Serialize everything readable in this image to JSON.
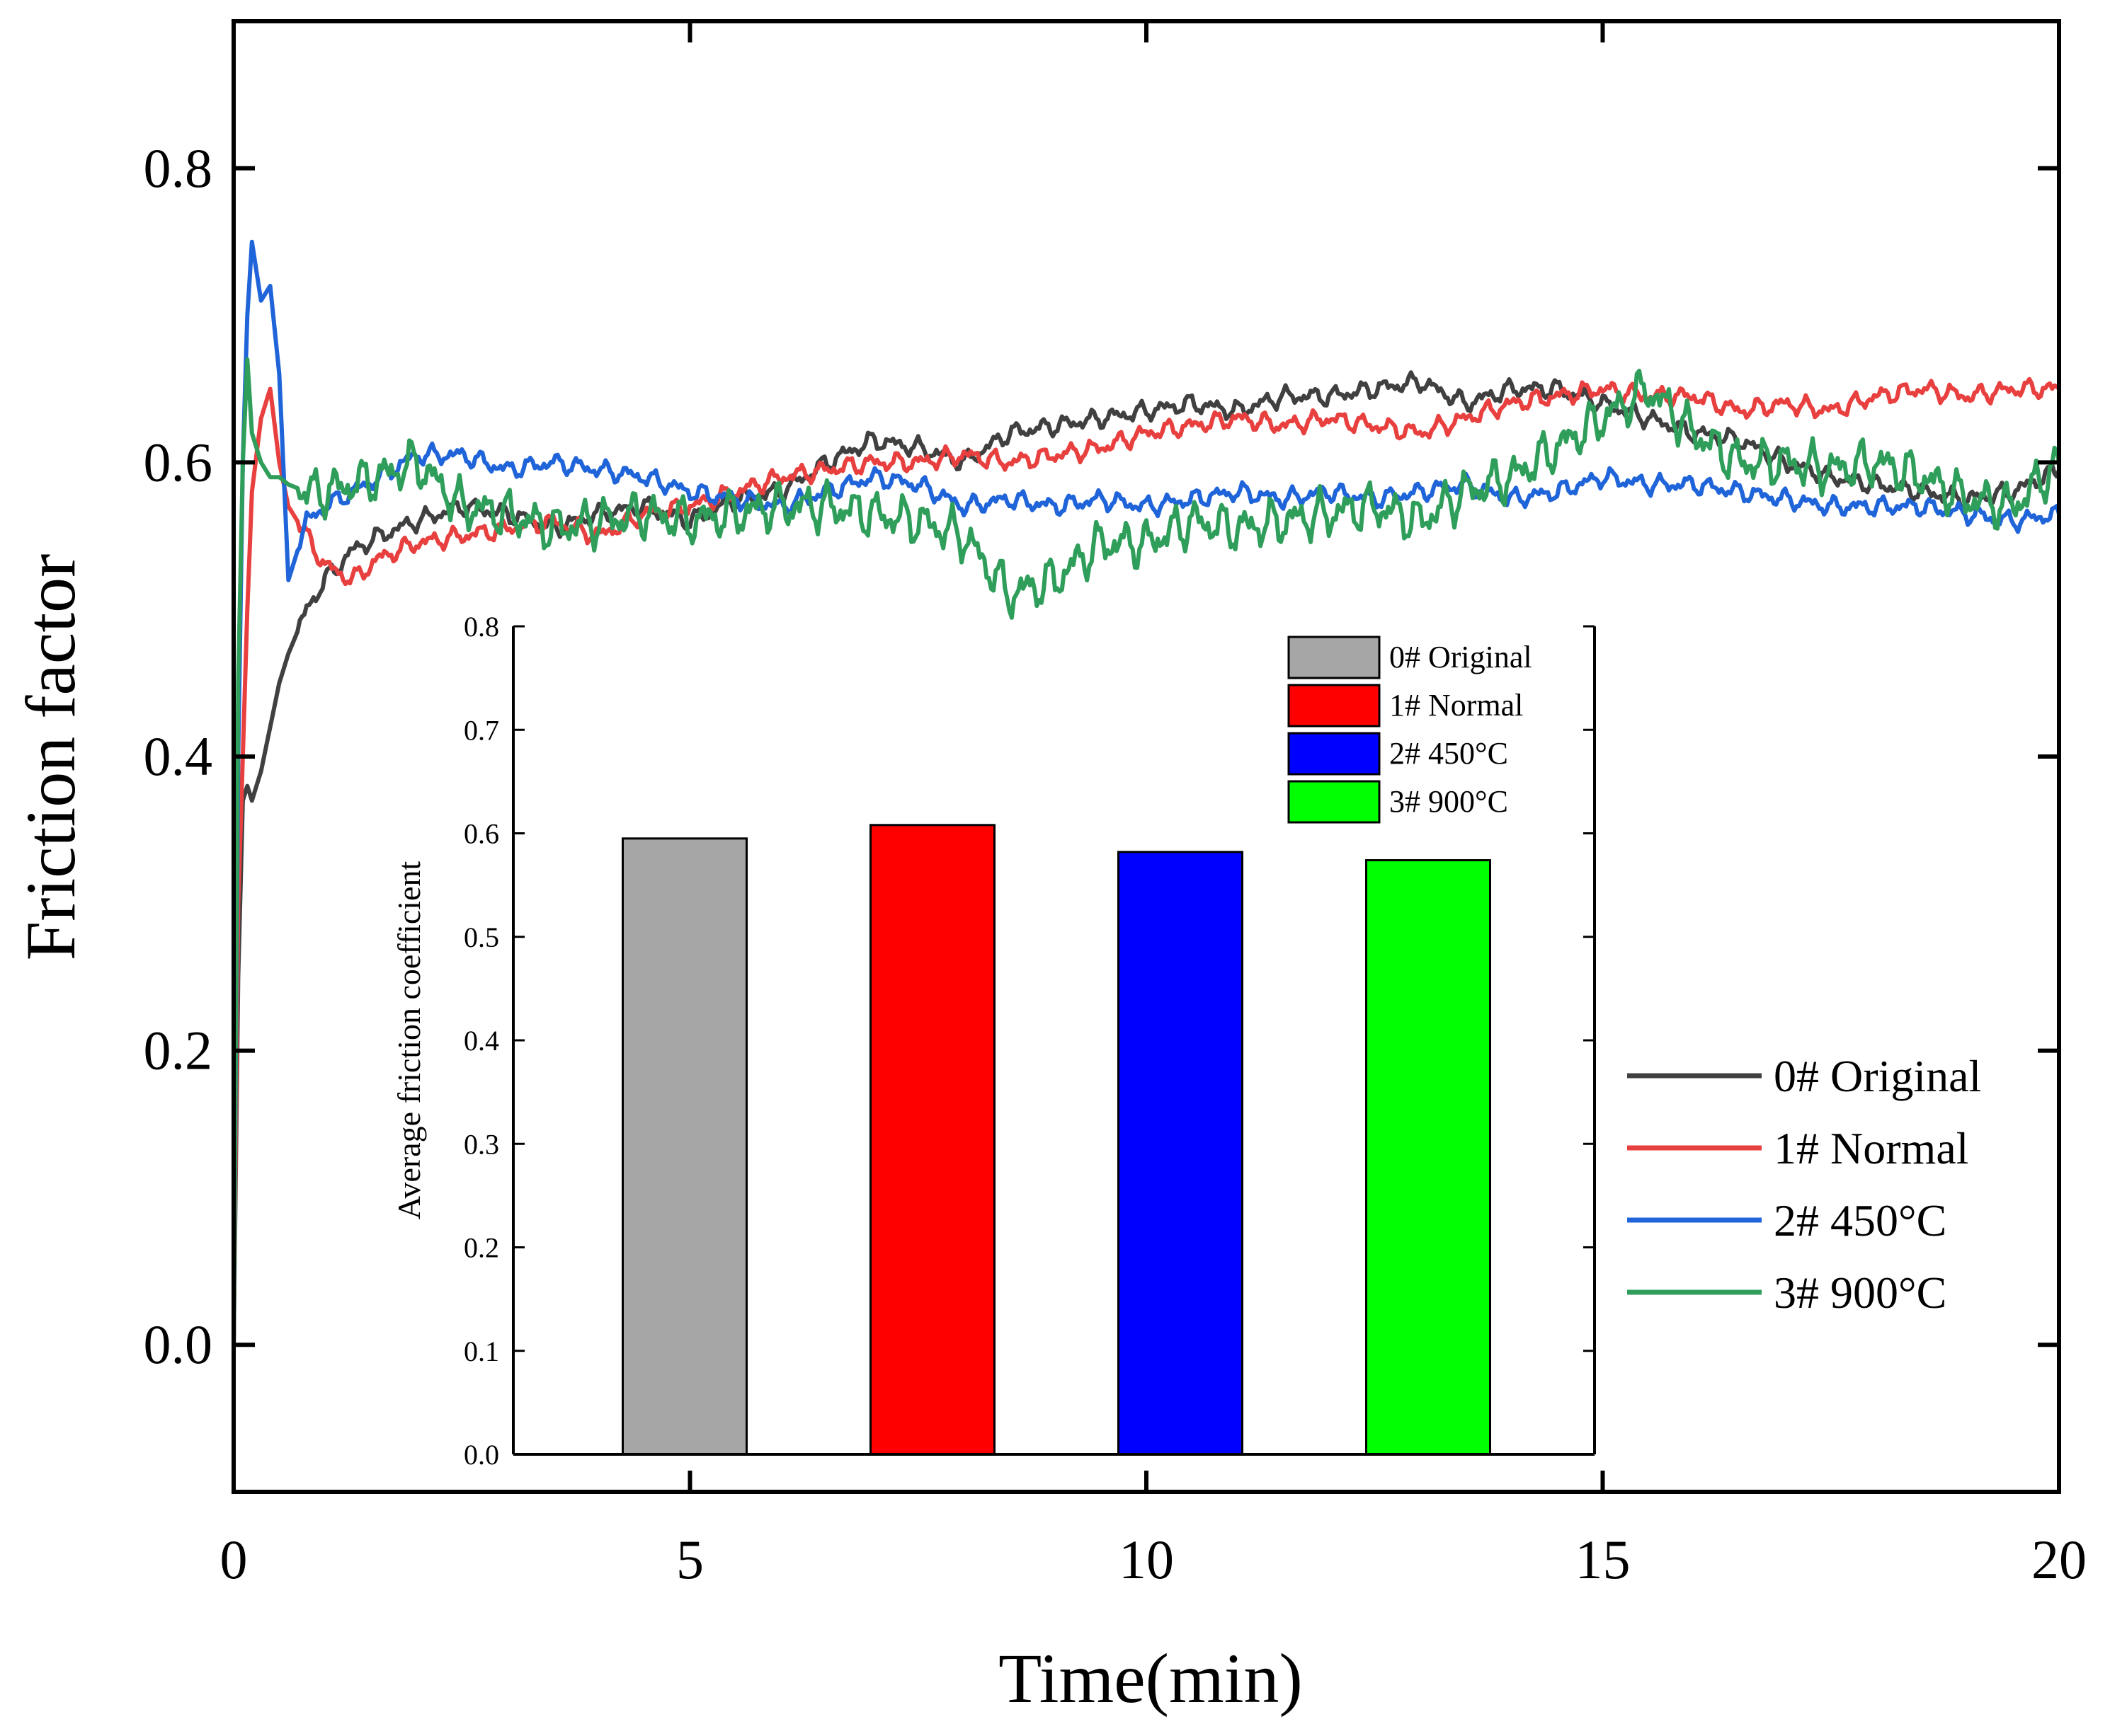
{
  "chart_data": [
    {
      "type": "line",
      "xlabel": "Time(min)",
      "ylabel": "Friction factor",
      "xlim": [
        0,
        20
      ],
      "ylim": [
        -0.1,
        0.9
      ],
      "xticks": [
        "0",
        "5",
        "10",
        "15",
        "20"
      ],
      "yticks": [
        "0.0",
        "0.2",
        "0.4",
        "0.6",
        "0.8"
      ],
      "legend_position": "right-middle",
      "series": [
        {
          "name": "0# Original",
          "color": "#404040",
          "x": [
            0,
            0.05,
            0.1,
            0.15,
            0.2,
            0.3,
            0.4,
            0.5,
            0.6,
            0.8,
            1.0,
            1.3,
            1.6,
            2.0,
            2.5,
            3.0,
            3.5,
            4.0,
            4.5,
            5.0,
            5.5,
            6.0,
            6.5,
            7.0,
            7.5,
            8.0,
            8.5,
            9.0,
            9.5,
            10.0,
            10.5,
            11.0,
            11.5,
            12.0,
            12.5,
            13.0,
            13.5,
            14.0,
            14.5,
            15.0,
            15.5,
            16.0,
            16.5,
            17.0,
            17.5,
            18.0,
            18.5,
            19.0,
            19.5,
            20.0
          ],
          "y": [
            0.0,
            0.25,
            0.37,
            0.38,
            0.37,
            0.39,
            0.42,
            0.45,
            0.47,
            0.5,
            0.52,
            0.54,
            0.55,
            0.56,
            0.57,
            0.565,
            0.555,
            0.565,
            0.57,
            0.56,
            0.575,
            0.58,
            0.6,
            0.615,
            0.61,
            0.6,
            0.62,
            0.625,
            0.63,
            0.635,
            0.64,
            0.635,
            0.645,
            0.645,
            0.65,
            0.655,
            0.64,
            0.65,
            0.65,
            0.64,
            0.63,
            0.62,
            0.615,
            0.6,
            0.59,
            0.585,
            0.58,
            0.575,
            0.58,
            0.595
          ]
        },
        {
          "name": "1# Normal",
          "color": "#e8403f",
          "x": [
            0,
            0.05,
            0.1,
            0.15,
            0.2,
            0.3,
            0.4,
            0.5,
            0.6,
            0.8,
            1.0,
            1.3,
            1.6,
            2.0,
            2.5,
            3.0,
            3.5,
            4.0,
            4.5,
            5.0,
            5.5,
            6.0,
            6.5,
            7.0,
            7.5,
            8.0,
            8.5,
            9.0,
            9.5,
            10.0,
            10.5,
            11.0,
            11.5,
            12.0,
            12.5,
            13.0,
            13.5,
            14.0,
            14.5,
            15.0,
            15.5,
            16.0,
            16.5,
            17.0,
            17.5,
            18.0,
            18.5,
            19.0,
            19.5,
            20.0
          ],
          "y": [
            0.0,
            0.3,
            0.4,
            0.5,
            0.58,
            0.63,
            0.65,
            0.6,
            0.57,
            0.55,
            0.53,
            0.52,
            0.535,
            0.545,
            0.55,
            0.555,
            0.56,
            0.55,
            0.565,
            0.57,
            0.58,
            0.59,
            0.595,
            0.6,
            0.6,
            0.605,
            0.6,
            0.605,
            0.61,
            0.62,
            0.625,
            0.63,
            0.625,
            0.63,
            0.625,
            0.62,
            0.63,
            0.64,
            0.645,
            0.65,
            0.645,
            0.645,
            0.635,
            0.64,
            0.635,
            0.645,
            0.65,
            0.645,
            0.65,
            0.65
          ]
        },
        {
          "name": "2# 450°C",
          "color": "#1f64d8",
          "x": [
            0,
            0.05,
            0.1,
            0.15,
            0.2,
            0.3,
            0.4,
            0.5,
            0.6,
            0.8,
            1.0,
            1.3,
            1.6,
            2.0,
            2.5,
            3.0,
            3.5,
            4.0,
            4.5,
            5.0,
            5.5,
            6.0,
            6.5,
            7.0,
            7.5,
            8.0,
            8.5,
            9.0,
            9.5,
            10.0,
            10.5,
            11.0,
            11.5,
            12.0,
            12.5,
            13.0,
            13.5,
            14.0,
            14.5,
            15.0,
            15.5,
            16.0,
            16.5,
            17.0,
            17.5,
            18.0,
            18.5,
            19.0,
            19.5,
            20.0
          ],
          "y": [
            0.0,
            0.4,
            0.6,
            0.7,
            0.75,
            0.71,
            0.72,
            0.66,
            0.52,
            0.56,
            0.57,
            0.58,
            0.59,
            0.605,
            0.605,
            0.595,
            0.6,
            0.595,
            0.59,
            0.58,
            0.575,
            0.57,
            0.58,
            0.59,
            0.585,
            0.57,
            0.575,
            0.57,
            0.575,
            0.57,
            0.575,
            0.58,
            0.575,
            0.58,
            0.575,
            0.58,
            0.585,
            0.575,
            0.58,
            0.59,
            0.585,
            0.585,
            0.58,
            0.575,
            0.57,
            0.57,
            0.57,
            0.565,
            0.56,
            0.565
          ]
        },
        {
          "name": "3# 900°C",
          "color": "#2f9e5a",
          "x": [
            0,
            0.05,
            0.1,
            0.15,
            0.2,
            0.3,
            0.4,
            0.5,
            0.6,
            0.8,
            1.0,
            1.3,
            1.6,
            2.0,
            2.5,
            3.0,
            3.5,
            4.0,
            4.5,
            5.0,
            5.5,
            6.0,
            6.5,
            7.0,
            7.5,
            8.0,
            8.5,
            9.0,
            9.5,
            10.0,
            10.5,
            11.0,
            11.5,
            12.0,
            12.5,
            13.0,
            13.5,
            14.0,
            14.5,
            15.0,
            15.5,
            16.0,
            16.5,
            17.0,
            17.5,
            18.0,
            18.5,
            19.0,
            19.5,
            20.0
          ],
          "y": [
            0.0,
            0.45,
            0.6,
            0.67,
            0.62,
            0.6,
            0.59,
            0.59,
            0.585,
            0.58,
            0.58,
            0.585,
            0.59,
            0.6,
            0.57,
            0.565,
            0.555,
            0.56,
            0.565,
            0.56,
            0.565,
            0.57,
            0.57,
            0.565,
            0.56,
            0.55,
            0.51,
            0.52,
            0.545,
            0.545,
            0.56,
            0.555,
            0.56,
            0.565,
            0.57,
            0.56,
            0.58,
            0.59,
            0.61,
            0.63,
            0.65,
            0.62,
            0.6,
            0.6,
            0.595,
            0.6,
            0.59,
            0.575,
            0.57,
            0.6
          ]
        }
      ]
    },
    {
      "type": "bar",
      "ylabel": "Average friction coefficient",
      "ylim": [
        0.0,
        0.8
      ],
      "yticks": [
        "0.0",
        "0.1",
        "0.2",
        "0.3",
        "0.4",
        "0.5",
        "0.6",
        "0.7",
        "0.8"
      ],
      "legend_position": "top-right",
      "categories": [
        "0# Original",
        "1# Normal",
        "2# 450°C",
        "3# 900°C"
      ],
      "values": [
        0.595,
        0.608,
        0.582,
        0.574
      ],
      "colors": [
        "#a6a6a6",
        "#ff0000",
        "#0000ff",
        "#00ff00"
      ]
    }
  ]
}
